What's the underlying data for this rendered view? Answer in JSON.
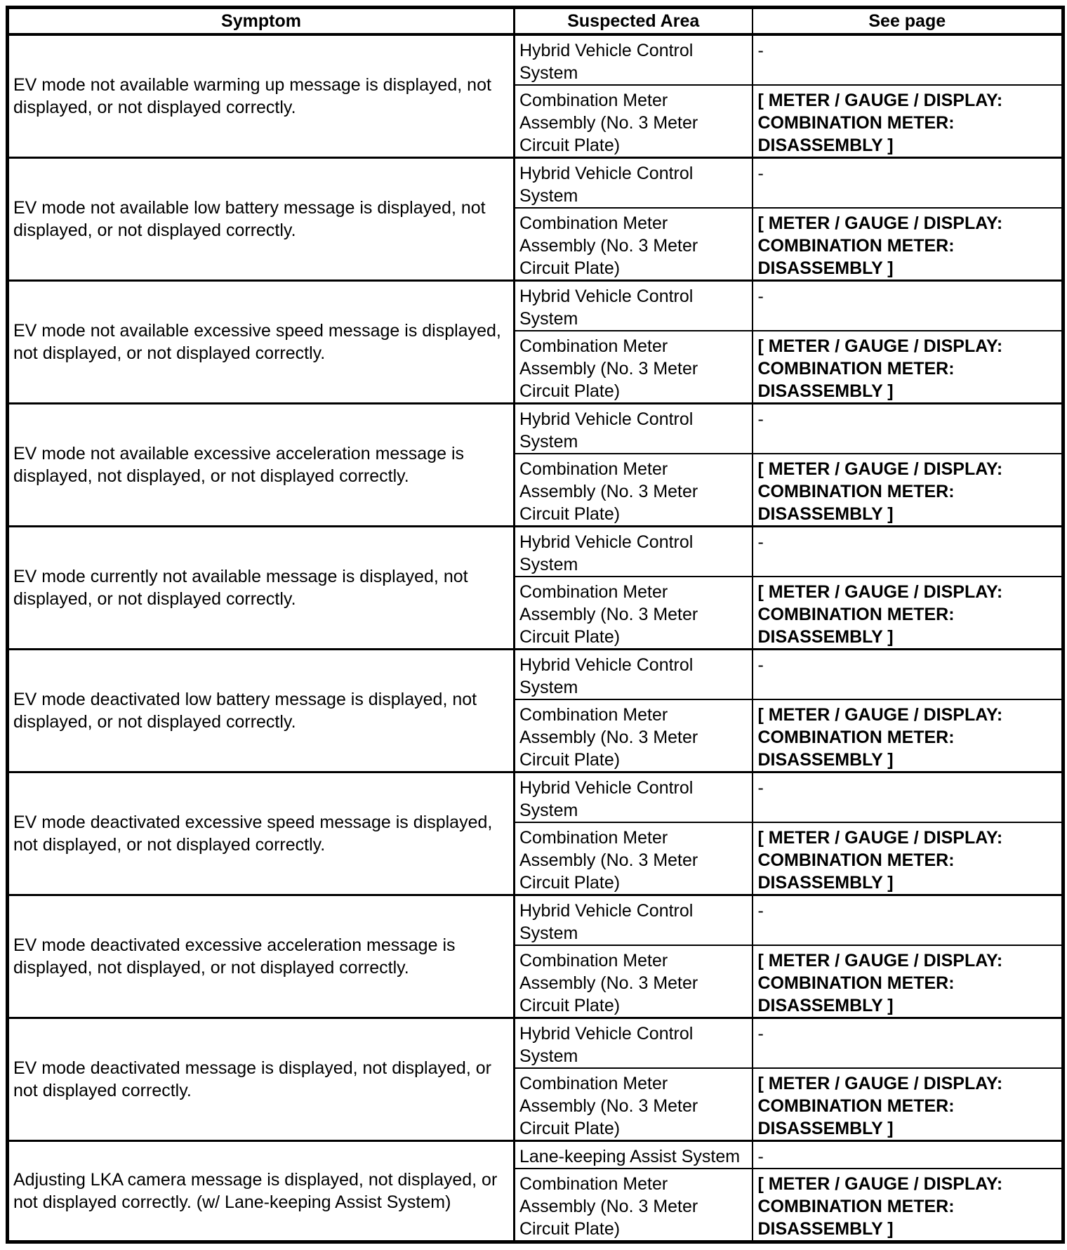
{
  "table": {
    "headers": [
      "Symptom",
      "Suspected Area",
      "See page"
    ],
    "rows": [
      {
        "symptom": "EV mode not available warming up message is displayed, not displayed, or not displayed correctly.",
        "entries": [
          {
            "suspected_area": "Hybrid Vehicle Control System",
            "see_page": "-",
            "bold": false
          },
          {
            "suspected_area": "Combination Meter Assembly (No. 3 Meter Circuit Plate)",
            "see_page": "[ METER / GAUGE / DISPLAY: COMBINATION METER: DISASSEMBLY ]",
            "bold": true
          }
        ]
      },
      {
        "symptom": "EV mode not available low battery message is displayed, not displayed, or not displayed correctly.",
        "entries": [
          {
            "suspected_area": "Hybrid Vehicle Control System",
            "see_page": "-",
            "bold": false
          },
          {
            "suspected_area": "Combination Meter Assembly (No. 3 Meter Circuit Plate)",
            "see_page": "[ METER / GAUGE / DISPLAY: COMBINATION METER: DISASSEMBLY ]",
            "bold": true
          }
        ]
      },
      {
        "symptom": "EV mode not available excessive speed message is displayed, not displayed, or not displayed correctly.",
        "entries": [
          {
            "suspected_area": "Hybrid Vehicle Control System",
            "see_page": "-",
            "bold": false
          },
          {
            "suspected_area": "Combination Meter Assembly (No. 3 Meter Circuit Plate)",
            "see_page": "[ METER / GAUGE / DISPLAY: COMBINATION METER: DISASSEMBLY ]",
            "bold": true
          }
        ]
      },
      {
        "symptom": "EV mode not available excessive acceleration message is displayed, not displayed, or not displayed correctly.",
        "entries": [
          {
            "suspected_area": "Hybrid Vehicle Control System",
            "see_page": "-",
            "bold": false
          },
          {
            "suspected_area": "Combination Meter Assembly (No. 3 Meter Circuit Plate)",
            "see_page": "[ METER / GAUGE / DISPLAY: COMBINATION METER: DISASSEMBLY ]",
            "bold": true
          }
        ]
      },
      {
        "symptom": "EV mode currently not available message is displayed, not displayed, or not displayed correctly.",
        "entries": [
          {
            "suspected_area": "Hybrid Vehicle Control System",
            "see_page": "-",
            "bold": false
          },
          {
            "suspected_area": "Combination Meter Assembly (No. 3 Meter Circuit Plate)",
            "see_page": "[ METER / GAUGE / DISPLAY: COMBINATION METER: DISASSEMBLY ]",
            "bold": true
          }
        ]
      },
      {
        "symptom": "EV mode deactivated low battery message is displayed, not displayed, or not displayed correctly.",
        "entries": [
          {
            "suspected_area": "Hybrid Vehicle Control System",
            "see_page": "-",
            "bold": false
          },
          {
            "suspected_area": "Combination Meter Assembly (No. 3 Meter Circuit Plate)",
            "see_page": "[ METER / GAUGE / DISPLAY: COMBINATION METER: DISASSEMBLY ]",
            "bold": true
          }
        ]
      },
      {
        "symptom": "EV mode deactivated excessive speed message is displayed, not displayed, or not displayed correctly.",
        "entries": [
          {
            "suspected_area": "Hybrid Vehicle Control System",
            "see_page": "-",
            "bold": false
          },
          {
            "suspected_area": "Combination Meter Assembly (No. 3 Meter Circuit Plate)",
            "see_page": "[ METER / GAUGE / DISPLAY: COMBINATION METER: DISASSEMBLY ]",
            "bold": true
          }
        ]
      },
      {
        "symptom": "EV mode deactivated excessive acceleration message is displayed, not displayed, or not displayed correctly.",
        "entries": [
          {
            "suspected_area": "Hybrid Vehicle Control System",
            "see_page": "-",
            "bold": false
          },
          {
            "suspected_area": "Combination Meter Assembly (No. 3 Meter Circuit Plate)",
            "see_page": "[ METER / GAUGE / DISPLAY: COMBINATION METER: DISASSEMBLY ]",
            "bold": true
          }
        ]
      },
      {
        "symptom": "EV mode deactivated message is displayed, not displayed, or not displayed correctly.",
        "entries": [
          {
            "suspected_area": "Hybrid Vehicle Control System",
            "see_page": "-",
            "bold": false
          },
          {
            "suspected_area": "Combination Meter Assembly (No. 3 Meter Circuit Plate)",
            "see_page": "[ METER / GAUGE / DISPLAY: COMBINATION METER: DISASSEMBLY ]",
            "bold": true
          }
        ]
      },
      {
        "symptom": "Adjusting LKA camera message is displayed, not displayed, or not displayed correctly. (w/ Lane-keeping Assist System)",
        "entries": [
          {
            "suspected_area": "Lane-keeping Assist System",
            "see_page": "-",
            "bold": false
          },
          {
            "suspected_area": "Combination Meter Assembly (No. 3 Meter Circuit Plate)",
            "see_page": "[ METER / GAUGE / DISPLAY: COMBINATION METER: DISASSEMBLY ]",
            "bold": true
          }
        ]
      }
    ]
  }
}
